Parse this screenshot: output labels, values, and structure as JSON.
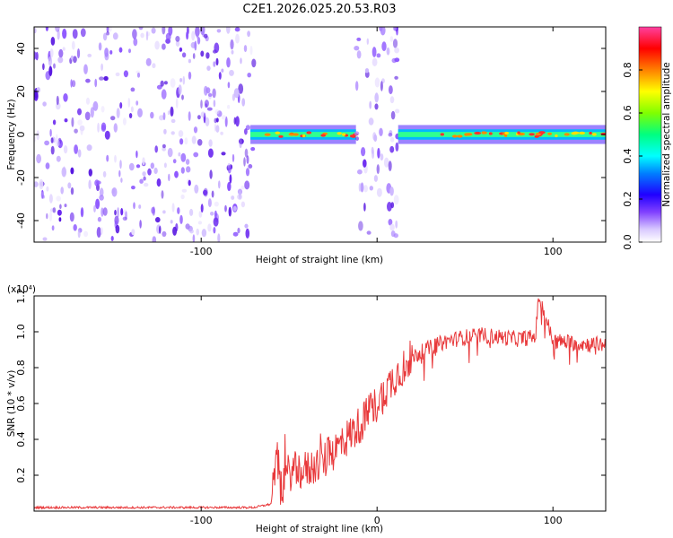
{
  "title": "C2E1.2026.025.20.53.R03",
  "chart_data": [
    {
      "type": "heatmap",
      "xlabel": "Height of straight line (km)",
      "ylabel": "Frequency (Hz)",
      "xlim": [
        -195,
        130
      ],
      "ylim": [
        -50,
        50
      ],
      "xticks": [
        -100,
        0,
        100
      ],
      "xtick_labels": [
        "-100",
        "",
        "100"
      ],
      "yticks": [
        -40,
        -20,
        0,
        20,
        40
      ],
      "ytick_labels": [
        "-40",
        "-20",
        "0",
        "20",
        "40"
      ],
      "colorbar": {
        "label": "Normalized spectral amplitude",
        "range": [
          0,
          1
        ],
        "ticks": [
          0.0,
          0.2,
          0.4,
          0.6,
          0.8
        ],
        "tick_labels": [
          "0.0",
          "0.2",
          "0.4",
          "0.6",
          "0.8"
        ],
        "colors": [
          "#ffffff",
          "#d8c8ff",
          "#8040ff",
          "#2000ff",
          "#0080ff",
          "#00ffff",
          "#00ff80",
          "#80ff00",
          "#ffff00",
          "#ff8000",
          "#ff0000",
          "#ff40a0"
        ]
      },
      "regions": [
        {
          "name": "noise",
          "x_range": [
            -195,
            -70
          ],
          "freq_range": [
            -50,
            50
          ]
        },
        {
          "name": "signal-line",
          "x_range": [
            -72,
            -12
          ],
          "center_freq": 0,
          "width_hz": 4
        },
        {
          "name": "noise",
          "x_range": [
            -12,
            12
          ],
          "freq_range": [
            -50,
            50
          ]
        },
        {
          "name": "signal-line",
          "x_range": [
            12,
            130
          ],
          "center_freq": 0,
          "width_hz": 4
        }
      ]
    },
    {
      "type": "line",
      "xlabel": "Height of straight line (km)",
      "ylabel": "SNR (10 * v/v)",
      "multiplier": "(x10⁴)",
      "xlim": [
        -195,
        130
      ],
      "ylim": [
        0,
        1.2
      ],
      "xticks": [
        -100,
        0,
        100
      ],
      "xtick_labels": [
        "-100",
        "0",
        "100"
      ],
      "yticks": [
        0.2,
        0.4,
        0.6,
        0.8,
        1.0,
        1.2
      ],
      "ytick_labels": [
        "0.2",
        "0.4",
        "0.6",
        "0.8",
        "1.0",
        "1.2"
      ],
      "color": "#e8383a",
      "series": [
        {
          "name": "SNR",
          "x": [
            -195,
            -100,
            -70,
            -60,
            -57,
            -55,
            -50,
            -40,
            -30,
            -20,
            -10,
            0,
            10,
            20,
            30,
            40,
            50,
            60,
            70,
            80,
            90,
            92,
            100,
            110,
            120,
            130
          ],
          "values": [
            0.02,
            0.02,
            0.02,
            0.04,
            0.35,
            0.12,
            0.22,
            0.23,
            0.28,
            0.38,
            0.48,
            0.6,
            0.75,
            0.86,
            0.91,
            0.95,
            0.97,
            0.98,
            0.97,
            0.96,
            0.97,
            1.2,
            0.95,
            0.94,
            0.93,
            0.93
          ]
        }
      ]
    }
  ]
}
